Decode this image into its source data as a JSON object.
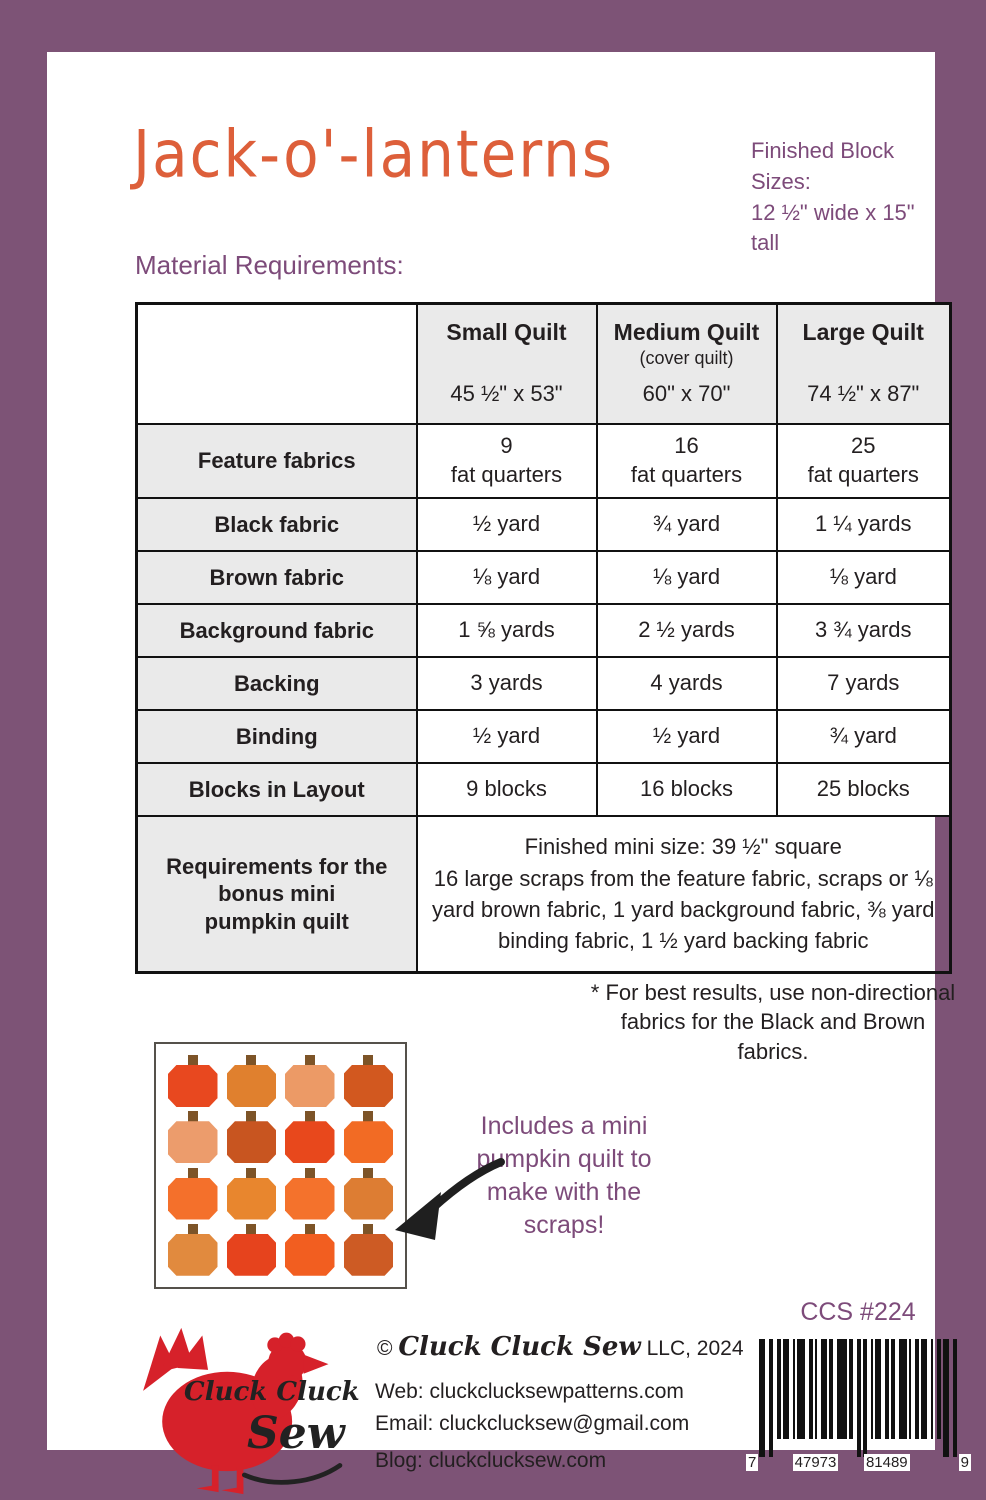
{
  "colors": {
    "frame": "#7d5376",
    "accent": "#7d4b7a",
    "title": "#dd5f3a",
    "logo-red": "#d6212a",
    "table-bg": "#eaeaea",
    "ink": "#231f20",
    "arrow": "#1f1f1f"
  },
  "header": {
    "title": "Jack-o'-lanterns",
    "block_sizes": "Finished Block Sizes:\n12 ½\" wide x 15\" tall",
    "section_heading": "Material Requirements:"
  },
  "table": {
    "columns": [
      {
        "title": "",
        "subtitle": "",
        "size": ""
      },
      {
        "title": "Small Quilt",
        "subtitle": "",
        "size": "45 ½\" x 53\""
      },
      {
        "title": "Medium Quilt",
        "subtitle": "(cover quilt)",
        "size": "60\" x 70\""
      },
      {
        "title": "Large Quilt",
        "subtitle": "",
        "size": "74 ½\" x 87\""
      }
    ],
    "rows": [
      {
        "label": "Feature fabrics",
        "values": [
          "9\nfat quarters",
          "16\nfat quarters",
          "25\nfat quarters"
        ]
      },
      {
        "label": "Black fabric",
        "values": [
          "½ yard",
          "¾ yard",
          "1 ¼ yards"
        ]
      },
      {
        "label": "Brown fabric",
        "values": [
          "⅛ yard",
          "⅛ yard",
          "⅛ yard"
        ]
      },
      {
        "label": "Background fabric",
        "values": [
          "1 ⅝ yards",
          "2 ½ yards",
          "3 ¾ yards"
        ]
      },
      {
        "label": "Backing",
        "values": [
          "3 yards",
          "4 yards",
          "7 yards"
        ]
      },
      {
        "label": "Binding",
        "values": [
          "½ yard",
          "½ yard",
          "¾ yard"
        ]
      },
      {
        "label": "Blocks in Layout",
        "values": [
          "9 blocks",
          "16 blocks",
          "25 blocks"
        ]
      }
    ],
    "bonus": {
      "label": "Requirements for the\nbonus mini\npumpkin quilt",
      "text": "Finished mini size: 39 ½\" square\n16 large scraps from the feature fabric, scraps or ⅛ yard brown fabric, 1 yard background fabric, ⅜ yard binding fabric, 1 ½ yard backing fabric"
    }
  },
  "note": "* For best results, use non-directional\nfabrics for the Black and Brown fabrics.",
  "mini_quilt": {
    "caption": "Includes a mini\npumpkin quilt to\nmake with the\nscraps!",
    "stem_color": "#7d5428",
    "pumpkin_colors": [
      "#e8481f",
      "#e0802e",
      "#ec9a66",
      "#d2581f",
      "#ec9c6c",
      "#c85520",
      "#e8481c",
      "#f26b24",
      "#f4702b",
      "#e8862e",
      "#f4722c",
      "#dd7d33",
      "#e18a3e",
      "#e6431d",
      "#f25e20",
      "#cd5b24"
    ]
  },
  "footer": {
    "item_number": "CCS #224",
    "logo_line1": "Cluck Cluck",
    "logo_line2": "Sew",
    "copyright_symbol": "© ",
    "copyright_script": "Cluck Cluck Sew",
    "copyright_rest": " LLC, 2024",
    "web": "Web: cluckclucksewpatterns.com",
    "email": "Email: cluckclucksew@gmail.com",
    "blog": "Blog:  cluckclucksew.com"
  },
  "barcode": {
    "left_digit": "7",
    "group1": "47973",
    "group2": "81489",
    "right_digit": "9"
  }
}
